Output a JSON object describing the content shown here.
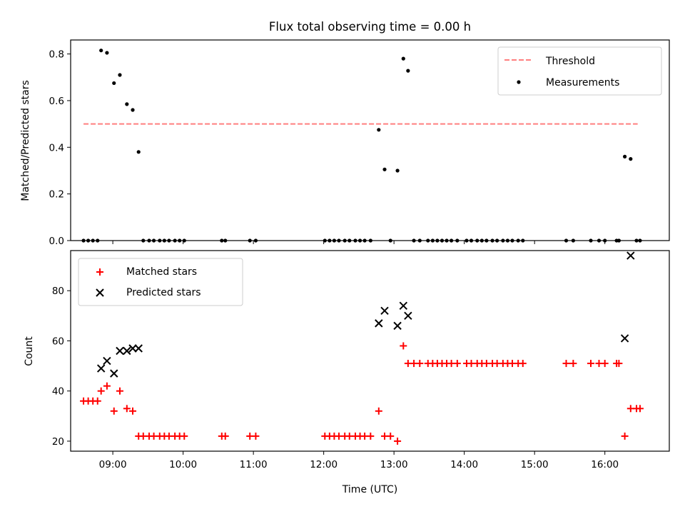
{
  "chart_data": [
    {
      "type": "scatter",
      "title": "Flux total observing time = 0.00 h",
      "ylabel": "Matched/Predicted stars",
      "xlabel": "",
      "xlim": [
        "08:24",
        "16:55"
      ],
      "ylim": [
        0,
        0.86
      ],
      "yticks": [
        0.0,
        0.2,
        0.4,
        0.6,
        0.8
      ],
      "ytick_labels": [
        "0.0",
        "0.2",
        "0.4",
        "0.6",
        "0.8"
      ],
      "legend_position": "top-right",
      "threshold": {
        "name": "Threshold",
        "y": 0.5,
        "x_start": "08:35",
        "x_end": "16:28",
        "color": "#ff7f7f",
        "style": "dashed"
      },
      "series": [
        {
          "name": "Measurements",
          "marker": "dot",
          "color": "#000000",
          "points": [
            [
              "08:35",
              0
            ],
            [
              "08:39",
              0
            ],
            [
              "08:43",
              0
            ],
            [
              "08:47",
              0
            ],
            [
              "08:50",
              0.815
            ],
            [
              "08:55",
              0.805
            ],
            [
              "09:01",
              0.675
            ],
            [
              "09:06",
              0.71
            ],
            [
              "09:12",
              0.585
            ],
            [
              "09:17",
              0.56
            ],
            [
              "09:22",
              0.38
            ],
            [
              "09:26",
              0
            ],
            [
              "09:31",
              0
            ],
            [
              "09:35",
              0
            ],
            [
              "09:40",
              0
            ],
            [
              "09:44",
              0
            ],
            [
              "09:48",
              0
            ],
            [
              "09:53",
              0
            ],
            [
              "09:57",
              0
            ],
            [
              "10:01",
              0
            ],
            [
              "10:33",
              0
            ],
            [
              "10:36",
              0
            ],
            [
              "10:57",
              0
            ],
            [
              "11:02",
              0
            ],
            [
              "12:01",
              0
            ],
            [
              "12:05",
              0
            ],
            [
              "12:09",
              0
            ],
            [
              "12:13",
              0
            ],
            [
              "12:18",
              0
            ],
            [
              "12:22",
              0
            ],
            [
              "12:27",
              0
            ],
            [
              "12:31",
              0
            ],
            [
              "12:35",
              0
            ],
            [
              "12:40",
              0
            ],
            [
              "12:47",
              0.475
            ],
            [
              "12:52",
              0.305
            ],
            [
              "12:57",
              0
            ],
            [
              "13:03",
              0.3
            ],
            [
              "13:08",
              0.78
            ],
            [
              "13:12",
              0.728
            ],
            [
              "13:17",
              0
            ],
            [
              "13:22",
              0
            ],
            [
              "13:29",
              0
            ],
            [
              "13:33",
              0
            ],
            [
              "13:37",
              0
            ],
            [
              "13:41",
              0
            ],
            [
              "13:45",
              0
            ],
            [
              "13:49",
              0
            ],
            [
              "13:54",
              0
            ],
            [
              "14:02",
              0
            ],
            [
              "14:06",
              0
            ],
            [
              "14:11",
              0
            ],
            [
              "14:15",
              0
            ],
            [
              "14:19",
              0
            ],
            [
              "14:24",
              0
            ],
            [
              "14:28",
              0
            ],
            [
              "14:33",
              0
            ],
            [
              "14:37",
              0
            ],
            [
              "14:41",
              0
            ],
            [
              "14:46",
              0
            ],
            [
              "14:50",
              0
            ],
            [
              "15:27",
              0
            ],
            [
              "15:33",
              0
            ],
            [
              "15:48",
              0
            ],
            [
              "15:55",
              0
            ],
            [
              "16:00",
              0
            ],
            [
              "16:10",
              0
            ],
            [
              "16:12",
              0
            ],
            [
              "16:17",
              0.36
            ],
            [
              "16:22",
              0.35
            ],
            [
              "16:27",
              0
            ],
            [
              "16:30",
              0
            ]
          ]
        }
      ]
    },
    {
      "type": "scatter",
      "title": "",
      "ylabel": "Count",
      "xlabel": "Time (UTC)",
      "xlim": [
        "08:24",
        "16:55"
      ],
      "ylim": [
        16,
        96
      ],
      "yticks": [
        20,
        40,
        60,
        80
      ],
      "ytick_labels": [
        "20",
        "40",
        "60",
        "80"
      ],
      "xticks": [
        "09:00",
        "10:00",
        "11:00",
        "12:00",
        "13:00",
        "14:00",
        "15:00",
        "16:00"
      ],
      "xtick_labels": [
        "09:00",
        "10:00",
        "11:00",
        "12:00",
        "13:00",
        "14:00",
        "15:00",
        "16:00"
      ],
      "legend_position": "top-left",
      "series": [
        {
          "name": "Matched stars",
          "marker": "plus",
          "color": "#ff0000",
          "points": [
            [
              "08:35",
              36
            ],
            [
              "08:39",
              36
            ],
            [
              "08:43",
              36
            ],
            [
              "08:47",
              36
            ],
            [
              "08:50",
              40
            ],
            [
              "08:55",
              42
            ],
            [
              "09:01",
              32
            ],
            [
              "09:06",
              40
            ],
            [
              "09:12",
              33
            ],
            [
              "09:17",
              32
            ],
            [
              "09:22",
              22
            ],
            [
              "09:26",
              22
            ],
            [
              "09:31",
              22
            ],
            [
              "09:35",
              22
            ],
            [
              "09:40",
              22
            ],
            [
              "09:44",
              22
            ],
            [
              "09:48",
              22
            ],
            [
              "09:53",
              22
            ],
            [
              "09:57",
              22
            ],
            [
              "10:01",
              22
            ],
            [
              "10:33",
              22
            ],
            [
              "10:36",
              22
            ],
            [
              "10:57",
              22
            ],
            [
              "11:02",
              22
            ],
            [
              "12:01",
              22
            ],
            [
              "12:05",
              22
            ],
            [
              "12:09",
              22
            ],
            [
              "12:13",
              22
            ],
            [
              "12:18",
              22
            ],
            [
              "12:22",
              22
            ],
            [
              "12:27",
              22
            ],
            [
              "12:31",
              22
            ],
            [
              "12:35",
              22
            ],
            [
              "12:40",
              22
            ],
            [
              "12:47",
              32
            ],
            [
              "12:52",
              22
            ],
            [
              "12:57",
              22
            ],
            [
              "13:03",
              20
            ],
            [
              "13:08",
              58
            ],
            [
              "13:12",
              51
            ],
            [
              "13:17",
              51
            ],
            [
              "13:22",
              51
            ],
            [
              "13:29",
              51
            ],
            [
              "13:33",
              51
            ],
            [
              "13:37",
              51
            ],
            [
              "13:41",
              51
            ],
            [
              "13:45",
              51
            ],
            [
              "13:49",
              51
            ],
            [
              "13:54",
              51
            ],
            [
              "14:02",
              51
            ],
            [
              "14:06",
              51
            ],
            [
              "14:11",
              51
            ],
            [
              "14:15",
              51
            ],
            [
              "14:19",
              51
            ],
            [
              "14:24",
              51
            ],
            [
              "14:28",
              51
            ],
            [
              "14:33",
              51
            ],
            [
              "14:37",
              51
            ],
            [
              "14:41",
              51
            ],
            [
              "14:46",
              51
            ],
            [
              "14:50",
              51
            ],
            [
              "15:27",
              51
            ],
            [
              "15:33",
              51
            ],
            [
              "15:48",
              51
            ],
            [
              "15:55",
              51
            ],
            [
              "16:00",
              51
            ],
            [
              "16:10",
              51
            ],
            [
              "16:12",
              51
            ],
            [
              "16:17",
              22
            ],
            [
              "16:22",
              33
            ],
            [
              "16:27",
              33
            ],
            [
              "16:30",
              33
            ]
          ]
        },
        {
          "name": "Predicted stars",
          "marker": "x",
          "color": "#000000",
          "points": [
            [
              "08:50",
              49
            ],
            [
              "08:55",
              52
            ],
            [
              "09:01",
              47
            ],
            [
              "09:06",
              56
            ],
            [
              "09:12",
              56
            ],
            [
              "09:17",
              57
            ],
            [
              "09:22",
              57
            ],
            [
              "12:47",
              67
            ],
            [
              "12:52",
              72
            ],
            [
              "13:03",
              66
            ],
            [
              "13:08",
              74
            ],
            [
              "13:12",
              70
            ],
            [
              "16:17",
              61
            ],
            [
              "16:22",
              94
            ]
          ]
        }
      ]
    }
  ]
}
